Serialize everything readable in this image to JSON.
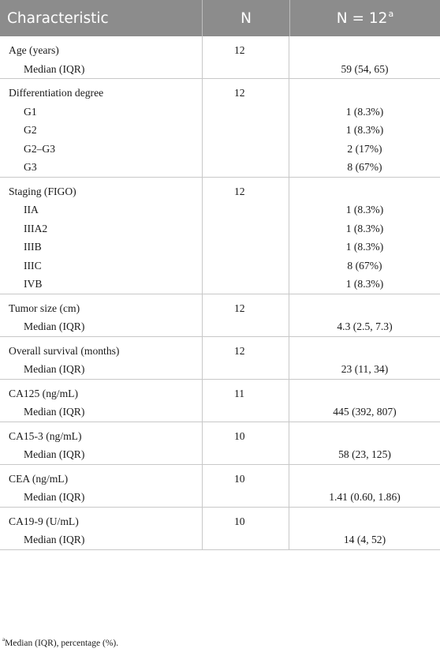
{
  "header": {
    "characteristic": "Characteristic",
    "n": "N",
    "n_total": "N = 12",
    "n_total_sup": "a"
  },
  "rows": [
    {
      "label": "Age (years)",
      "n": "12",
      "subs": [
        {
          "label": "Median (IQR)",
          "value": "59 (54, 65)"
        }
      ]
    },
    {
      "label": "Differentiation degree",
      "n": "12",
      "subs": [
        {
          "label": "G1",
          "value": "1 (8.3%)"
        },
        {
          "label": "G2",
          "value": "1 (8.3%)"
        },
        {
          "label": "G2–G3",
          "value": "2 (17%)"
        },
        {
          "label": "G3",
          "value": "8 (67%)"
        }
      ]
    },
    {
      "label": "Staging (FIGO)",
      "n": "12",
      "subs": [
        {
          "label": "IIA",
          "value": "1 (8.3%)"
        },
        {
          "label": "IIIA2",
          "value": "1 (8.3%)"
        },
        {
          "label": "IIIB",
          "value": "1 (8.3%)"
        },
        {
          "label": "IIIC",
          "value": "8 (67%)"
        },
        {
          "label": "IVB",
          "value": "1 (8.3%)"
        }
      ]
    },
    {
      "label": "Tumor size (cm)",
      "n": "12",
      "subs": [
        {
          "label": "Median (IQR)",
          "value": "4.3 (2.5, 7.3)"
        }
      ]
    },
    {
      "label": "Overall survival (months)",
      "n": "12",
      "subs": [
        {
          "label": "Median (IQR)",
          "value": "23 (11, 34)"
        }
      ]
    },
    {
      "label": "CA125 (ng/mL)",
      "n": "11",
      "subs": [
        {
          "label": "Median (IQR)",
          "value": "445 (392, 807)"
        }
      ]
    },
    {
      "label": "CA15-3 (ng/mL)",
      "n": "10",
      "subs": [
        {
          "label": "Median (IQR)",
          "value": "58 (23, 125)"
        }
      ]
    },
    {
      "label": "CEA (ng/mL)",
      "n": "10",
      "subs": [
        {
          "label": "Median (IQR)",
          "value": "1.41 (0.60, 1.86)"
        }
      ]
    },
    {
      "label": "CA19-9 (U/mL)",
      "n": "10",
      "subs": [
        {
          "label": "Median (IQR)",
          "value": "14 (4, 52)"
        }
      ]
    }
  ],
  "footnote": {
    "sup": "a",
    "text": "Median (IQR), percentage (%)."
  }
}
